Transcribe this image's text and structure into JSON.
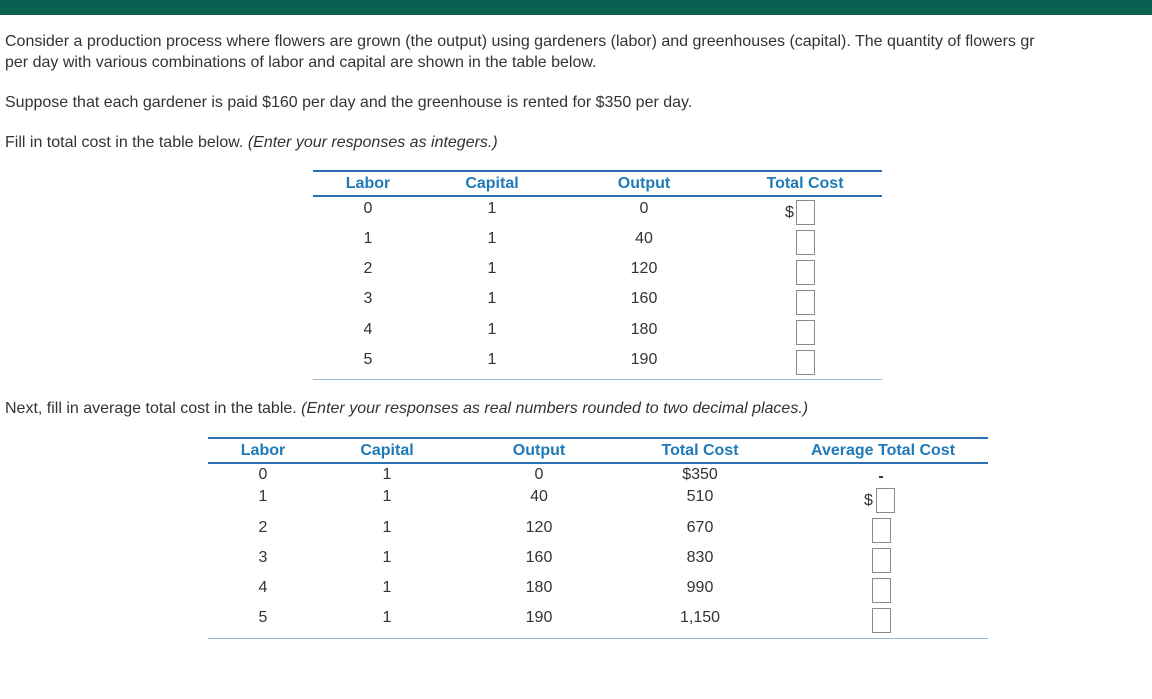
{
  "intro_line1": "Consider a production process where flowers are grown (the output) using gardeners (labor) and greenhouses (capital). The quantity of flowers gr",
  "intro_line2": "per day with various combinations of labor and capital are shown in the table below.",
  "wage_text": "Suppose that each gardener is paid $160 per day and the greenhouse is rented for $350 per day.",
  "instr1_text": "Fill in total cost in the table below.",
  "instr1_italic": "(Enter your responses as integers.)",
  "instr2_text": "Next, fill in average total cost in the table.",
  "instr2_italic": "(Enter your responses as real numbers rounded to two decimal places.)",
  "table1": {
    "headers": {
      "labor": "Labor",
      "capital": "Capital",
      "output": "Output",
      "total_cost": "Total Cost"
    },
    "currency": "$",
    "rows": [
      {
        "labor": "0",
        "capital": "1",
        "output": "0"
      },
      {
        "labor": "1",
        "capital": "1",
        "output": "40"
      },
      {
        "labor": "2",
        "capital": "1",
        "output": "120"
      },
      {
        "labor": "3",
        "capital": "1",
        "output": "160"
      },
      {
        "labor": "4",
        "capital": "1",
        "output": "180"
      },
      {
        "labor": "5",
        "capital": "1",
        "output": "190"
      }
    ]
  },
  "table2": {
    "headers": {
      "labor": "Labor",
      "capital": "Capital",
      "output": "Output",
      "total_cost": "Total Cost",
      "atc": "Average Total Cost"
    },
    "currency": "$",
    "atc_first": "-",
    "rows": [
      {
        "labor": "0",
        "capital": "1",
        "output": "0",
        "total_cost": "$350"
      },
      {
        "labor": "1",
        "capital": "1",
        "output": "40",
        "total_cost": "510"
      },
      {
        "labor": "2",
        "capital": "1",
        "output": "120",
        "total_cost": "670"
      },
      {
        "labor": "3",
        "capital": "1",
        "output": "160",
        "total_cost": "830"
      },
      {
        "labor": "4",
        "capital": "1",
        "output": "180",
        "total_cost": "990"
      },
      {
        "labor": "5",
        "capital": "1",
        "output": "190",
        "total_cost": "1,150"
      }
    ]
  }
}
